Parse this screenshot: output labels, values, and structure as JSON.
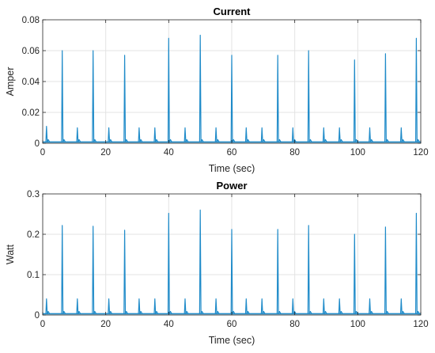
{
  "chart_data": [
    {
      "type": "line",
      "title": "Current",
      "xlabel": "Time (sec)",
      "ylabel": "Amper",
      "xlim": [
        0,
        120
      ],
      "ylim": [
        0,
        0.08
      ],
      "xticks": [
        "0",
        "20",
        "40",
        "60",
        "80",
        "100",
        "120"
      ],
      "yticks": [
        "0",
        "0.02",
        "0.04",
        "0.06",
        "0.08"
      ],
      "grid": true,
      "color": "#1f8bc9",
      "baseline": 0.0008,
      "spikes": [
        {
          "x": 1.2,
          "y": 0.011
        },
        {
          "x": 6.2,
          "y": 0.06
        },
        {
          "x": 11.0,
          "y": 0.01
        },
        {
          "x": 16.0,
          "y": 0.06
        },
        {
          "x": 21.0,
          "y": 0.01
        },
        {
          "x": 26.0,
          "y": 0.057
        },
        {
          "x": 30.6,
          "y": 0.01
        },
        {
          "x": 35.6,
          "y": 0.01
        },
        {
          "x": 40.0,
          "y": 0.068
        },
        {
          "x": 45.2,
          "y": 0.01
        },
        {
          "x": 50.0,
          "y": 0.07
        },
        {
          "x": 55.0,
          "y": 0.01
        },
        {
          "x": 60.0,
          "y": 0.057
        },
        {
          "x": 64.6,
          "y": 0.01
        },
        {
          "x": 69.6,
          "y": 0.01
        },
        {
          "x": 74.6,
          "y": 0.057
        },
        {
          "x": 79.4,
          "y": 0.01
        },
        {
          "x": 84.4,
          "y": 0.06
        },
        {
          "x": 89.2,
          "y": 0.01
        },
        {
          "x": 94.2,
          "y": 0.01
        },
        {
          "x": 99.0,
          "y": 0.054
        },
        {
          "x": 103.8,
          "y": 0.01
        },
        {
          "x": 108.8,
          "y": 0.058
        },
        {
          "x": 113.8,
          "y": 0.01
        },
        {
          "x": 118.6,
          "y": 0.068
        }
      ]
    },
    {
      "type": "line",
      "title": "Power",
      "xlabel": "Time (sec)",
      "ylabel": "Watt",
      "xlim": [
        0,
        120
      ],
      "ylim": [
        0,
        0.3
      ],
      "xticks": [
        "0",
        "20",
        "40",
        "60",
        "80",
        "100",
        "120"
      ],
      "yticks": [
        "0",
        "0.1",
        "0.2",
        "0.3"
      ],
      "grid": true,
      "color": "#1f8bc9",
      "baseline": 0.003,
      "spikes": [
        {
          "x": 1.2,
          "y": 0.04
        },
        {
          "x": 6.2,
          "y": 0.222
        },
        {
          "x": 11.0,
          "y": 0.04
        },
        {
          "x": 16.0,
          "y": 0.22
        },
        {
          "x": 21.0,
          "y": 0.04
        },
        {
          "x": 26.0,
          "y": 0.21
        },
        {
          "x": 30.6,
          "y": 0.04
        },
        {
          "x": 35.6,
          "y": 0.04
        },
        {
          "x": 40.0,
          "y": 0.252
        },
        {
          "x": 45.2,
          "y": 0.04
        },
        {
          "x": 50.0,
          "y": 0.26
        },
        {
          "x": 55.0,
          "y": 0.04
        },
        {
          "x": 60.0,
          "y": 0.212
        },
        {
          "x": 64.6,
          "y": 0.04
        },
        {
          "x": 69.6,
          "y": 0.04
        },
        {
          "x": 74.6,
          "y": 0.212
        },
        {
          "x": 79.4,
          "y": 0.04
        },
        {
          "x": 84.4,
          "y": 0.222
        },
        {
          "x": 89.2,
          "y": 0.04
        },
        {
          "x": 94.2,
          "y": 0.04
        },
        {
          "x": 99.0,
          "y": 0.2
        },
        {
          "x": 103.8,
          "y": 0.04
        },
        {
          "x": 108.8,
          "y": 0.218
        },
        {
          "x": 113.8,
          "y": 0.04
        },
        {
          "x": 118.6,
          "y": 0.252
        }
      ]
    }
  ]
}
